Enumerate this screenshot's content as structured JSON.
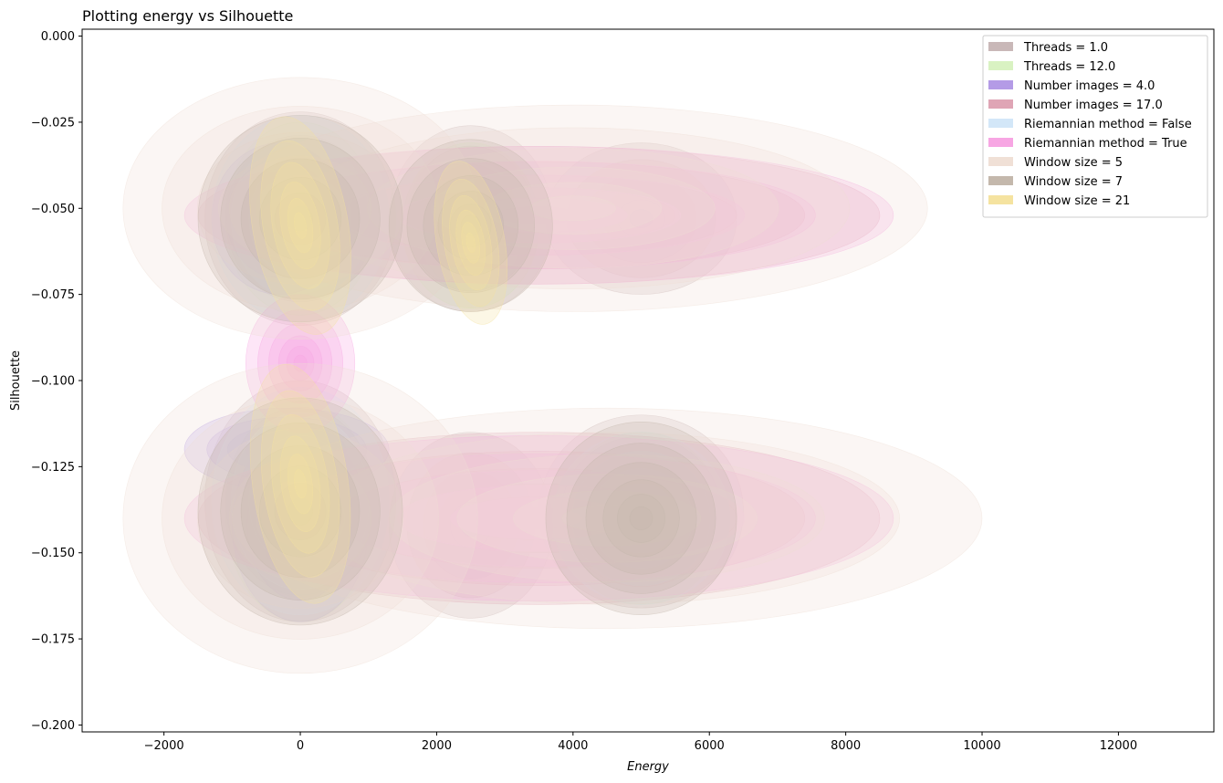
{
  "chart_data": {
    "type": "kde_density",
    "title": "Plotting energy vs Silhouette",
    "xlabel": "Energy",
    "ylabel": "Silhouette",
    "xlim": [
      -3200,
      13400
    ],
    "ylim": [
      -0.202,
      0.002
    ],
    "x_ticks": [
      -2000,
      0,
      2000,
      4000,
      6000,
      8000,
      10000,
      12000
    ],
    "x_tick_labels": [
      "−2000",
      "0",
      "2000",
      "4000",
      "6000",
      "8000",
      "10000",
      "12000"
    ],
    "y_ticks": [
      0.0,
      -0.025,
      -0.05,
      -0.075,
      -0.1,
      -0.125,
      -0.15,
      -0.175,
      -0.2
    ],
    "y_tick_labels": [
      "0.000",
      "−0.025",
      "−0.050",
      "−0.075",
      "−0.100",
      "−0.125",
      "−0.150",
      "−0.175",
      "−0.200"
    ],
    "grid": false,
    "legend_position": "top-right",
    "series": [
      {
        "name": "Threads = 1.0",
        "color": "#c9b8b8",
        "clusters": [
          {
            "cx": 0,
            "cy": -0.053,
            "sx": 1400,
            "sy": 0.031
          },
          {
            "cx": 2500,
            "cy": -0.053,
            "sx": 1200,
            "sy": 0.027
          },
          {
            "cx": 5000,
            "cy": -0.053,
            "sx": 1400,
            "sy": 0.022
          },
          {
            "cx": 0,
            "cy": -0.135,
            "sx": 1400,
            "sy": 0.035
          },
          {
            "cx": 2500,
            "cy": -0.142,
            "sx": 1200,
            "sy": 0.027
          },
          {
            "cx": 5000,
            "cy": -0.138,
            "sx": 1500,
            "sy": 0.028
          }
        ]
      },
      {
        "name": "Threads = 12.0",
        "color": "#d9f2c2",
        "clusters": [
          {
            "cx": 0,
            "cy": -0.053,
            "sx": 1100,
            "sy": 0.028
          },
          {
            "cx": 2500,
            "cy": -0.055,
            "sx": 1000,
            "sy": 0.024
          },
          {
            "cx": 0,
            "cy": -0.138,
            "sx": 1100,
            "sy": 0.032
          },
          {
            "cx": 5000,
            "cy": -0.14,
            "sx": 1200,
            "sy": 0.025
          }
        ]
      },
      {
        "name": "Number images = 4.0",
        "color": "#b49be6",
        "clusters": [
          {
            "cx": -300,
            "cy": -0.053,
            "sx": 1000,
            "sy": 0.022
          },
          {
            "cx": -200,
            "cy": -0.12,
            "sx": 1500,
            "sy": 0.012
          },
          {
            "cx": 0,
            "cy": -0.142,
            "sx": 1000,
            "sy": 0.028
          }
        ]
      },
      {
        "name": "Number images = 17.0",
        "color": "#dfa5b5",
        "clusters": [
          {
            "cx": 3500,
            "cy": -0.052,
            "sx": 5000,
            "sy": 0.02
          },
          {
            "cx": 3500,
            "cy": -0.14,
            "sx": 5000,
            "sy": 0.025
          }
        ]
      },
      {
        "name": "Riemannian method = False",
        "color": "#d3e7f8",
        "clusters": [
          {
            "cx": 0,
            "cy": -0.053,
            "sx": 1300,
            "sy": 0.03
          },
          {
            "cx": 0,
            "cy": -0.135,
            "sx": 1300,
            "sy": 0.033
          },
          {
            "cx": 5000,
            "cy": -0.14,
            "sx": 1300,
            "sy": 0.025
          }
        ]
      },
      {
        "name": "Riemannian method = True",
        "color": "#f7a6e3",
        "clusters": [
          {
            "cx": 3500,
            "cy": -0.052,
            "sx": 5200,
            "sy": 0.02
          },
          {
            "cx": 3500,
            "cy": -0.14,
            "sx": 5200,
            "sy": 0.024
          },
          {
            "cx": 0,
            "cy": -0.095,
            "sx": 800,
            "sy": 0.02
          }
        ]
      },
      {
        "name": "Window size = 5",
        "color": "#f0e0d6",
        "clusters": [
          {
            "cx": 0,
            "cy": -0.05,
            "sx": 2600,
            "sy": 0.038
          },
          {
            "cx": 4000,
            "cy": -0.05,
            "sx": 5200,
            "sy": 0.03
          },
          {
            "cx": 0,
            "cy": -0.14,
            "sx": 2600,
            "sy": 0.045
          },
          {
            "cx": 4500,
            "cy": -0.14,
            "sx": 5500,
            "sy": 0.032
          }
        ]
      },
      {
        "name": "Window size = 7",
        "color": "#c4b8ac",
        "clusters": [
          {
            "cx": 0,
            "cy": -0.053,
            "sx": 1500,
            "sy": 0.03
          },
          {
            "cx": 2500,
            "cy": -0.055,
            "sx": 1200,
            "sy": 0.025
          },
          {
            "cx": 0,
            "cy": -0.138,
            "sx": 1500,
            "sy": 0.033
          },
          {
            "cx": 5000,
            "cy": -0.14,
            "sx": 1400,
            "sy": 0.028
          }
        ]
      },
      {
        "name": "Window size = 21",
        "color": "#f5e3a0",
        "clusters": [
          {
            "cx": 0,
            "cy": -0.055,
            "sx": 700,
            "sy": 0.032,
            "rot": -10
          },
          {
            "cx": 2500,
            "cy": -0.06,
            "sx": 500,
            "sy": 0.024,
            "rot": -10
          },
          {
            "cx": 0,
            "cy": -0.13,
            "sx": 700,
            "sy": 0.035,
            "rot": -8
          }
        ]
      }
    ]
  }
}
